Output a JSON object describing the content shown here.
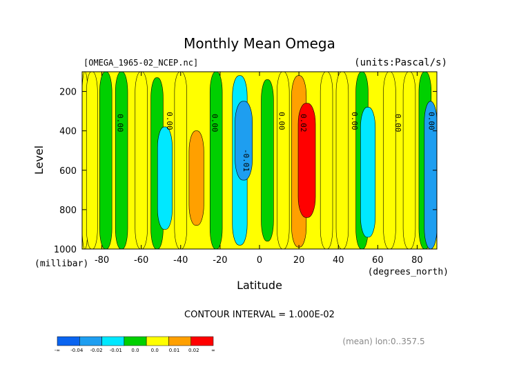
{
  "chart_data": {
    "type": "heatmap",
    "title": "Monthly Mean Omega",
    "source_file": "[OMEGA_1965-02_NCEP.nc]",
    "units_note": "(units:Pascal/s)",
    "xlabel": "Latitude",
    "x_unit": "(degrees_north)",
    "ylabel": "Level",
    "y_unit": "(millibar)",
    "xlim": [
      -90,
      90
    ],
    "ylim": [
      1000,
      100
    ],
    "x_ticks": [
      "-80",
      "-60",
      "-40",
      "-20",
      "0",
      "20",
      "40",
      "60",
      "80"
    ],
    "x_tick_values": [
      -80,
      -60,
      -40,
      -20,
      0,
      20,
      40,
      60,
      80
    ],
    "y_ticks": [
      "200",
      "400",
      "600",
      "800",
      "1000"
    ],
    "y_tick_values": [
      200,
      400,
      600,
      800,
      1000
    ],
    "contour_interval_text": "CONTOUR INTERVAL = 1.000E-02",
    "footer_note": "(mean) lon:0..357.5",
    "contour_labels": [
      {
        "text": "0.00",
        "lat": -72,
        "level": 360
      },
      {
        "text": "0.00",
        "lat": -47,
        "level": 350
      },
      {
        "text": "0.00",
        "lat": -24,
        "level": 360
      },
      {
        "text": "-0.01",
        "lat": -8,
        "level": 550
      },
      {
        "text": "0.00",
        "lat": 10,
        "level": 350
      },
      {
        "text": "0.02",
        "lat": 21,
        "level": 360
      },
      {
        "text": "0.00",
        "lat": 47,
        "level": 350
      },
      {
        "text": "0.00",
        "lat": 69,
        "level": 360
      },
      {
        "text": "0.00",
        "lat": 86,
        "level": 350
      }
    ],
    "legend": {
      "labels": [
        "-∞",
        "-0.04",
        "-0.02",
        "-0.01",
        "0.0",
        "0.0",
        "0.01",
        "0.02",
        "∞"
      ],
      "colors": [
        "#0a64f0",
        "#1e9ef0",
        "#00e8ff",
        "#00d000",
        "#ffff00",
        "#ffa000",
        "#ff0000"
      ]
    },
    "bands": [
      {
        "lat": -90,
        "top": 100,
        "bottom": 1000,
        "value": 0.0
      },
      {
        "lat": -85,
        "top": 100,
        "bottom": 1000,
        "value": 0.0
      },
      {
        "lat": -78,
        "top": 100,
        "bottom": 1000,
        "value": -0.005
      },
      {
        "lat": -70,
        "top": 100,
        "bottom": 1000,
        "value": -0.005
      },
      {
        "lat": -60,
        "top": 100,
        "bottom": 1000,
        "value": 0.005
      },
      {
        "lat": -52,
        "top": 130,
        "bottom": 1000,
        "value": -0.005
      },
      {
        "lat": -48,
        "top": 380,
        "bottom": 900,
        "value": -0.015
      },
      {
        "lat": -40,
        "top": 100,
        "bottom": 1000,
        "value": 0.005
      },
      {
        "lat": -32,
        "top": 400,
        "bottom": 880,
        "value": 0.015
      },
      {
        "lat": -22,
        "top": 100,
        "bottom": 1000,
        "value": -0.005
      },
      {
        "lat": -10,
        "top": 120,
        "bottom": 980,
        "value": -0.015
      },
      {
        "lat": -8,
        "top": 250,
        "bottom": 650,
        "value": -0.025
      },
      {
        "lat": 4,
        "top": 140,
        "bottom": 960,
        "value": -0.005
      },
      {
        "lat": 12,
        "top": 100,
        "bottom": 1000,
        "value": 0.005
      },
      {
        "lat": 20,
        "top": 120,
        "bottom": 990,
        "value": 0.015
      },
      {
        "lat": 24,
        "top": 260,
        "bottom": 840,
        "value": 0.025
      },
      {
        "lat": 34,
        "top": 100,
        "bottom": 1000,
        "value": 0.005
      },
      {
        "lat": 42,
        "top": 100,
        "bottom": 1000,
        "value": 0.005
      },
      {
        "lat": 52,
        "top": 100,
        "bottom": 1000,
        "value": -0.005
      },
      {
        "lat": 55,
        "top": 280,
        "bottom": 940,
        "value": -0.015
      },
      {
        "lat": 66,
        "top": 100,
        "bottom": 1000,
        "value": 0.005
      },
      {
        "lat": 76,
        "top": 100,
        "bottom": 1000,
        "value": 0.005
      },
      {
        "lat": 84,
        "top": 100,
        "bottom": 1000,
        "value": -0.005
      },
      {
        "lat": 88,
        "top": 250,
        "bottom": 1000,
        "value": -0.025
      }
    ]
  }
}
